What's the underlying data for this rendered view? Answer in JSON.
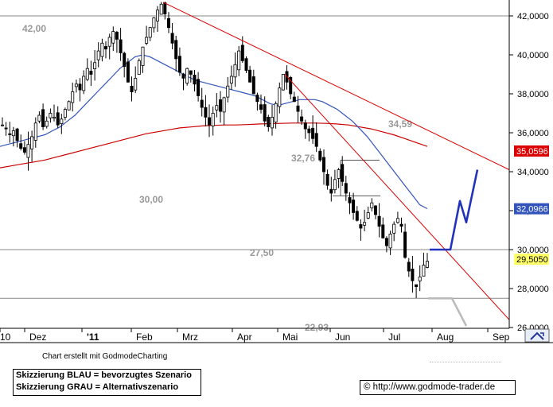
{
  "credit": "Chart erstellt mit GodmodeCharting",
  "legend": {
    "blue": "Skizzierung BLAU = bevorzugtes Szenario",
    "gray": "Skizzierung GRAU = Alternativszenario"
  },
  "footer_url": "© http://www.godmode-trader.de",
  "colors": {
    "resistance_line": "#dd0000",
    "ma_short": "#3355bb",
    "ma_long": "#cc0000",
    "scenario_blue": "#2233bb",
    "scenario_gray": "#bbbbbb",
    "candle": "#000000",
    "level_line": "#888888",
    "level_text": "#999999",
    "price_badge_red": "#dd0000",
    "price_badge_blue": "#3355bb",
    "price_badge_yellow": "#ffff66"
  },
  "chart_data": {
    "type": "candlestick",
    "x_ticks": [
      "10",
      "Dez",
      "'11",
      "Feb",
      "Mrz",
      "Apr",
      "Mai",
      "Jun",
      "Jul",
      "Aug",
      "Sep"
    ],
    "y_ticks": [
      "42,0000",
      "40,0000",
      "38,0000",
      "36,0000",
      "34,0000",
      "32,0000",
      "30,0000",
      "28,0000",
      "26,0000"
    ],
    "y_values": [
      42,
      40,
      38,
      36,
      34,
      32,
      30,
      28,
      26
    ],
    "ylim": [
      24.8,
      42.7
    ],
    "price_badges": [
      {
        "label": "35,0596",
        "value": 35.0596,
        "style": "red"
      },
      {
        "label": "32,0966",
        "value": 32.0966,
        "style": "blue"
      },
      {
        "label": "29,5050",
        "value": 29.505,
        "style": "yellow"
      }
    ],
    "level_labels": [
      {
        "text": "42,00",
        "value": 42.0
      },
      {
        "text": "34,59",
        "value": 34.59
      },
      {
        "text": "32,76",
        "value": 32.76
      },
      {
        "text": "30,00",
        "value": 30.0
      },
      {
        "text": "27,50",
        "value": 27.5
      },
      {
        "text": "22,93",
        "value": 22.93
      }
    ],
    "horizontal_levels": [
      42.0,
      30.0,
      27.5
    ],
    "gap_box": {
      "top": 34.59,
      "bottom": 32.76
    },
    "close_series": [
      36.4,
      36.2,
      35.9,
      36.1,
      35.6,
      35.2,
      35.0,
      35.4,
      35.8,
      36.5,
      36.9,
      36.3,
      36.6,
      37.0,
      36.8,
      36.4,
      36.7,
      37.2,
      37.6,
      38.1,
      38.5,
      38.2,
      38.9,
      39.3,
      39.0,
      39.6,
      40.2,
      40.6,
      40.3,
      40.9,
      41.2,
      40.8,
      40.1,
      39.4,
      38.6,
      38.1,
      38.8,
      39.7,
      40.4,
      40.9,
      41.4,
      41.9,
      42.3,
      42.6,
      42.1,
      41.4,
      40.6,
      39.8,
      39.1,
      38.8,
      39.3,
      39.0,
      38.5,
      37.9,
      37.3,
      36.8,
      36.4,
      37.0,
      37.4,
      37.1,
      37.8,
      38.4,
      38.9,
      39.5,
      40.2,
      39.7,
      39.2,
      38.6,
      38.0,
      37.6,
      37.2,
      36.6,
      36.3,
      36.8,
      37.5,
      38.3,
      39.0,
      38.6,
      38.0,
      37.6,
      37.1,
      36.6,
      36.2,
      36.0,
      35.7,
      35.3,
      34.6,
      34.0,
      33.3,
      32.9,
      33.6,
      34.1,
      33.5,
      32.9,
      32.4,
      31.9,
      31.5,
      31.1,
      31.4,
      31.9,
      32.4,
      31.8,
      31.2,
      30.6,
      30.2,
      30.8,
      31.3,
      31.6,
      31.2,
      29.6,
      28.9,
      28.4,
      28.1,
      28.6,
      29.2,
      29.4
    ],
    "ma_short": [
      35.3,
      35.4,
      35.5,
      35.6,
      35.7,
      35.8,
      35.9,
      36.1,
      36.3,
      36.6,
      36.9,
      37.3,
      37.7,
      38.1,
      38.5,
      38.9,
      39.3,
      39.6,
      39.9,
      40.0,
      39.9,
      39.7,
      39.5,
      39.3,
      39.1,
      38.9,
      38.7,
      38.6,
      38.5,
      38.4,
      38.3,
      38.2,
      38.1,
      38.0,
      37.9,
      37.7,
      37.5,
      37.4,
      37.5,
      37.6,
      37.7,
      37.7,
      37.7,
      37.6,
      37.4,
      37.2,
      36.9,
      36.6,
      36.2,
      35.8,
      35.3,
      34.8,
      34.3,
      33.8,
      33.3,
      32.8,
      32.3,
      32.1
    ],
    "ma_long": [
      34.2,
      34.3,
      34.4,
      34.5,
      34.6,
      34.75,
      34.9,
      35.05,
      35.2,
      35.35,
      35.5,
      35.65,
      35.8,
      35.95,
      36.05,
      36.15,
      36.25,
      36.3,
      36.35,
      36.38,
      36.4,
      36.4,
      36.42,
      36.45,
      36.47,
      36.48,
      36.5,
      36.5,
      36.5,
      36.48,
      36.45,
      36.4,
      36.3,
      36.2,
      36.05,
      35.9,
      35.7,
      35.5,
      35.3
    ],
    "resistance_lines": [
      {
        "from": 42.7,
        "to": 34.1
      },
      {
        "from": 39.0,
        "to": 26.4
      }
    ],
    "scenario_blue": [
      30.0,
      30.0,
      32.5,
      31.4,
      34.1
    ],
    "scenario_gray": [
      27.5,
      27.5,
      24.8
    ]
  }
}
